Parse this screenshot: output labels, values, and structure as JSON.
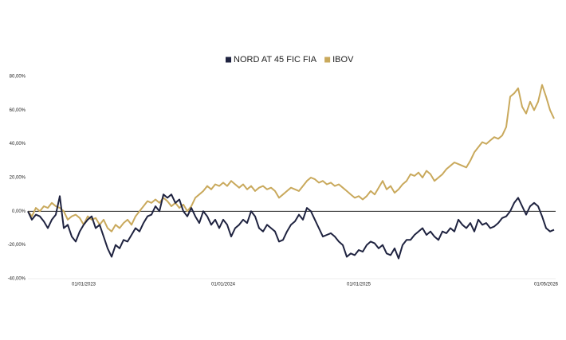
{
  "chart_data": {
    "type": "line",
    "categories": [
      null,
      null,
      null,
      null,
      null,
      null,
      null,
      null,
      null,
      null,
      null,
      null,
      null,
      null,
      "01/01/2023",
      null,
      null,
      null,
      null,
      null,
      null,
      null,
      null,
      null,
      null,
      null,
      null,
      null,
      null,
      null,
      null,
      null,
      null,
      null,
      null,
      null,
      null,
      null,
      null,
      null,
      null,
      null,
      null,
      null,
      null,
      null,
      null,
      null,
      null,
      "01/01/2024",
      null,
      null,
      null,
      null,
      null,
      null,
      null,
      null,
      null,
      null,
      null,
      null,
      null,
      null,
      null,
      null,
      null,
      null,
      null,
      null,
      null,
      null,
      null,
      null,
      null,
      null,
      null,
      null,
      null,
      null,
      null,
      null,
      null,
      "01/01/2025",
      null,
      null,
      null,
      null,
      null,
      null,
      null,
      null,
      null,
      null,
      null,
      null,
      null,
      null,
      null,
      null,
      null,
      null,
      null,
      null,
      null,
      null,
      null,
      null,
      null,
      null,
      null,
      null,
      null,
      null,
      null,
      null,
      null,
      null,
      null,
      null,
      null,
      null,
      null,
      null,
      null,
      null,
      null,
      null,
      null,
      null,
      "01/05/2026",
      null,
      null
    ],
    "series": [
      {
        "name": "NORD AT 45 FIC FIA",
        "color": "#1f2340",
        "values": [
          0,
          -5,
          -2,
          -3,
          -6,
          -10,
          -5,
          -2,
          9,
          -10,
          -8,
          -15,
          -18,
          -12,
          -8,
          -5,
          -3,
          -10,
          -8,
          -15,
          -22,
          -27,
          -20,
          -22,
          -17,
          -18,
          -14,
          -10,
          -12,
          -7,
          -3,
          -2,
          3,
          0,
          10,
          8,
          10,
          5,
          7,
          0,
          -3,
          2,
          -3,
          -7,
          0,
          -3,
          -8,
          -5,
          -10,
          -5,
          -8,
          -15,
          -10,
          -8,
          -5,
          -7,
          0,
          -3,
          -10,
          -12,
          -8,
          -10,
          -12,
          -18,
          -17,
          -12,
          -8,
          -6,
          -2,
          -5,
          2,
          0,
          -5,
          -10,
          -15,
          -14,
          -13,
          -15,
          -18,
          -20,
          -27,
          -25,
          -26,
          -23,
          -24,
          -20,
          -18,
          -19,
          -22,
          -20,
          -25,
          -26,
          -22,
          -28,
          -20,
          -17,
          -17,
          -14,
          -12,
          -10,
          -14,
          -12,
          -15,
          -17,
          -12,
          -13,
          -10,
          -12,
          -5,
          -8,
          -10,
          -7,
          -12,
          -5,
          -8,
          -7,
          -10,
          -9,
          -7,
          -4,
          -3,
          0,
          5,
          8,
          3,
          -2,
          3,
          5,
          3,
          -3,
          -10,
          -12,
          -11
        ]
      },
      {
        "name": "IBOV",
        "color": "#c9a95c",
        "values": [
          0,
          -3,
          2,
          0,
          3,
          2,
          5,
          3,
          2,
          0,
          -5,
          -3,
          -2,
          -4,
          -8,
          -3,
          -5,
          -4,
          -8,
          -5,
          -10,
          -12,
          -8,
          -10,
          -7,
          -5,
          -8,
          -3,
          0,
          3,
          6,
          5,
          7,
          5,
          8,
          6,
          3,
          5,
          2,
          4,
          0,
          3,
          8,
          10,
          12,
          15,
          13,
          16,
          15,
          17,
          15,
          18,
          16,
          14,
          16,
          13,
          15,
          12,
          14,
          15,
          13,
          14,
          12,
          8,
          10,
          12,
          14,
          13,
          12,
          15,
          18,
          20,
          19,
          17,
          18,
          16,
          17,
          15,
          16,
          14,
          12,
          10,
          8,
          9,
          7,
          9,
          12,
          10,
          14,
          18,
          13,
          15,
          11,
          13,
          16,
          18,
          22,
          21,
          23,
          20,
          24,
          22,
          18,
          20,
          22,
          25,
          27,
          29,
          28,
          27,
          26,
          30,
          35,
          38,
          41,
          40,
          42,
          44,
          43,
          45,
          50,
          68,
          70,
          73,
          62,
          58,
          65,
          60,
          65,
          75,
          68,
          60,
          55
        ]
      }
    ],
    "ylim": [
      -40,
      80
    ],
    "yticks": [
      {
        "value": -40,
        "label": "-40,00%"
      },
      {
        "value": -20,
        "label": "-20,00%"
      },
      {
        "value": 0,
        "label": "0,00%"
      },
      {
        "value": 20,
        "label": "20,00%"
      },
      {
        "value": 40,
        "label": "40,00%"
      },
      {
        "value": 60,
        "label": "60,00%"
      },
      {
        "value": 80,
        "label": "80,00%"
      }
    ],
    "legend": "top"
  }
}
